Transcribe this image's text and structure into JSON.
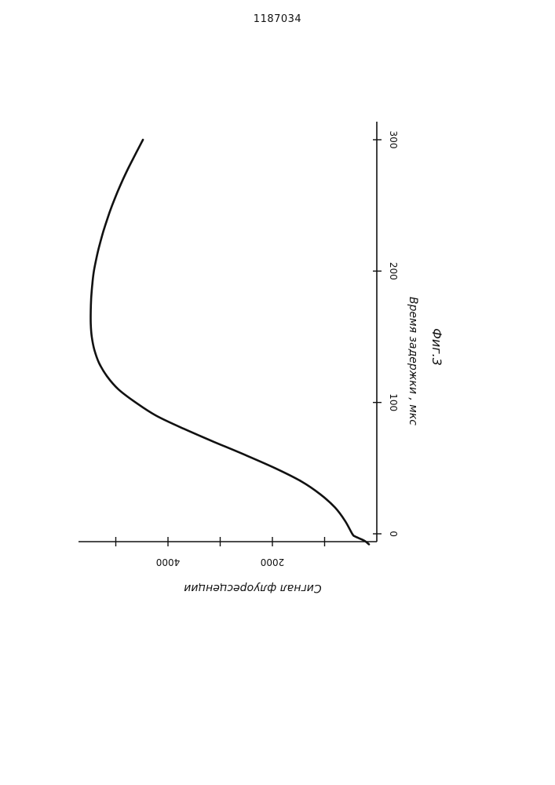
{
  "page_number": "1187034",
  "chart_data": {
    "type": "line",
    "orientation": "rotated",
    "xlabel": "Время задержки , мкс",
    "ylabel": "Сигнал флуоресценции",
    "caption": "Фиг.3",
    "xlim": [
      -10,
      310
    ],
    "ylim": [
      0,
      5500
    ],
    "x_ticks": [
      0,
      100,
      200,
      300
    ],
    "x_tick_labels": [
      "0",
      "100",
      "200",
      "300"
    ],
    "y_ticks": [
      1000,
      2000,
      3000,
      4000,
      5000
    ],
    "y_tick_labels": [
      "",
      "2000",
      "",
      "4000",
      ""
    ],
    "grid": false,
    "series": [
      {
        "x": [
          -8,
          -5,
          -2,
          0,
          10,
          20,
          30,
          40,
          50,
          60,
          70,
          80,
          90,
          100,
          110,
          120,
          130,
          140,
          150,
          160,
          170,
          180,
          190,
          200,
          210,
          220,
          230,
          240,
          250,
          260,
          270,
          280,
          290,
          300
        ],
        "y": [
          150,
          250,
          420,
          470,
          610,
          800,
          1080,
          1450,
          1950,
          2520,
          3120,
          3700,
          4230,
          4620,
          4950,
          5170,
          5320,
          5410,
          5460,
          5480,
          5480,
          5470,
          5450,
          5420,
          5370,
          5310,
          5240,
          5160,
          5070,
          4970,
          4860,
          4740,
          4610,
          4480
        ]
      }
    ]
  }
}
